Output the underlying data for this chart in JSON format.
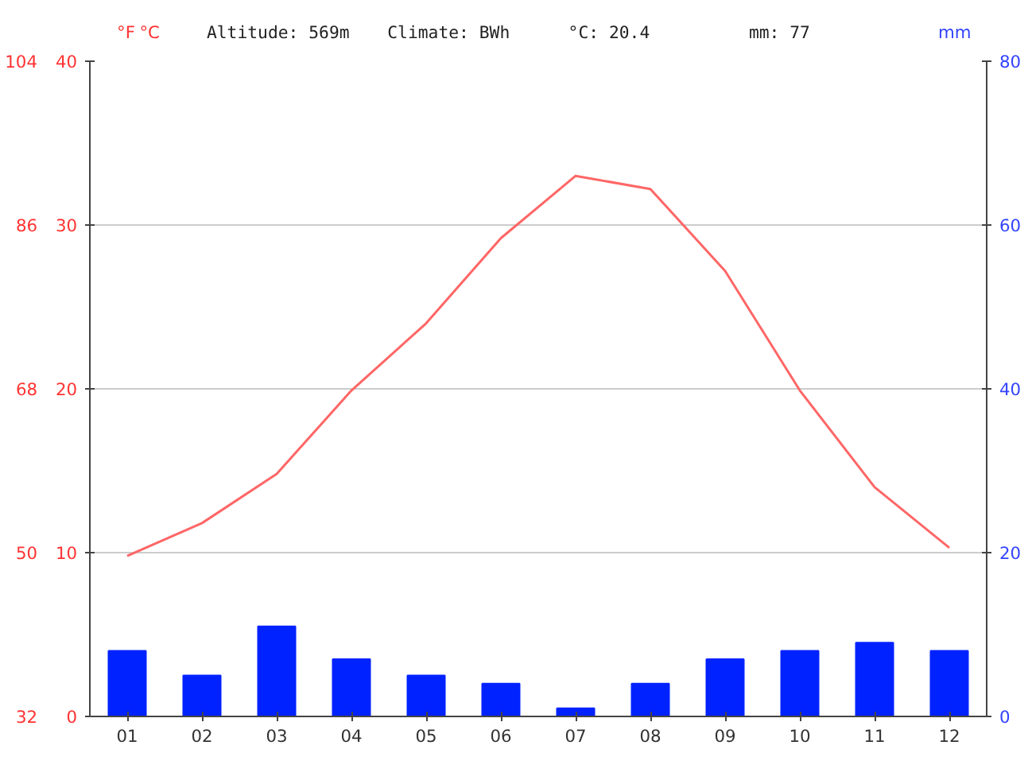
{
  "chart_data": {
    "type": "bar",
    "categories": [
      "01",
      "02",
      "03",
      "04",
      "05",
      "06",
      "07",
      "08",
      "09",
      "10",
      "11",
      "12"
    ],
    "series": [
      {
        "axis": "y2",
        "color": "#0022ff",
        "values": [
          8,
          5,
          11,
          7,
          5,
          4,
          1,
          4,
          7,
          8,
          9,
          8
        ]
      },
      {
        "type": "line",
        "axis": "y",
        "color": "#ff6666",
        "values": [
          9.8,
          11.8,
          14.8,
          19.9,
          24.0,
          29.2,
          33.0,
          32.2,
          27.2,
          19.9,
          14.0,
          10.3
        ]
      }
    ],
    "ylabel": "°C",
    "ylim": [
      0,
      40
    ],
    "yticks": [
      0,
      10,
      20,
      30,
      40
    ],
    "y3label": "°F",
    "y3lim": [
      32,
      104
    ],
    "y3ticks": [
      32,
      50,
      68,
      86,
      104
    ],
    "y2label": "mm",
    "y2lim": [
      0,
      80
    ],
    "y2ticks": [
      0,
      20,
      40,
      60,
      80
    ],
    "annotations": [
      "Altitude: 569m",
      "Climate: BWh",
      "°C: 20.4",
      "mm: 77"
    ],
    "grid": "y"
  }
}
